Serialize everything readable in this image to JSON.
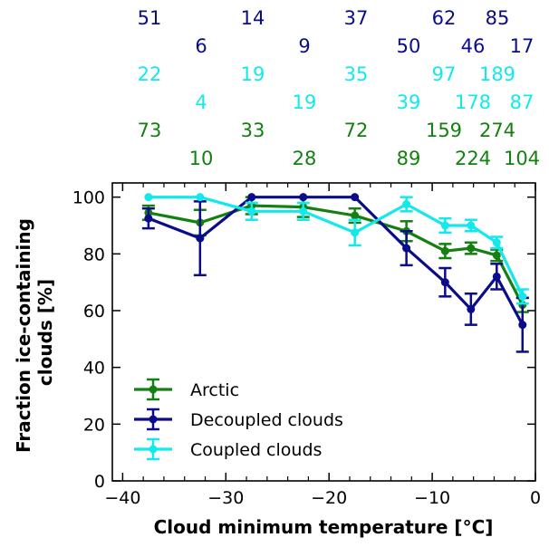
{
  "chart_data": {
    "type": "line",
    "xlabel": "Cloud minimum temperature [°C]",
    "ylabel_lines": [
      "Fraction ice-containing",
      "clouds [%]"
    ],
    "xlim": [
      -41,
      0
    ],
    "ylim": [
      0,
      105
    ],
    "xticks": [
      -40,
      -30,
      -20,
      -10,
      0
    ],
    "yticks": [
      0,
      20,
      40,
      60,
      80,
      100
    ],
    "minor_x_step": 2,
    "legend_position": "lower-left",
    "grid": false,
    "x": [
      -37.5,
      -32.5,
      -27.5,
      -22.5,
      -17.5,
      -12.5,
      -8.75,
      -6.25,
      -3.75,
      -1.25
    ],
    "series": [
      {
        "name": "Arctic",
        "color": "#138011",
        "values": [
          94.5,
          91,
          97,
          96.5,
          93.5,
          88,
          81,
          82,
          79.5,
          62
        ],
        "errors": [
          2.5,
          4.5,
          3,
          3.5,
          2.5,
          3.5,
          2.5,
          2,
          2,
          2.5
        ]
      },
      {
        "name": "Decoupled clouds",
        "color": "#0b0c8a",
        "values": [
          92.5,
          85.5,
          100,
          100,
          100,
          82,
          70,
          60.5,
          72,
          55
        ],
        "errors": [
          3.5,
          13,
          0,
          0,
          0,
          6,
          5,
          5.5,
          4.5,
          9.5
        ]
      },
      {
        "name": "Coupled clouds",
        "color": "#13e8ec",
        "values": [
          100,
          100,
          95,
          95,
          87.5,
          97.5,
          90,
          90,
          84,
          65
        ],
        "errors": [
          0,
          0,
          3,
          3,
          4.5,
          2.5,
          2.5,
          2,
          2,
          2.5
        ]
      }
    ],
    "count_rows": [
      {
        "color": "#0b0c8a",
        "labels": [
          "51",
          "14",
          "37",
          "62",
          "85"
        ]
      },
      {
        "color": "#0b0c8a",
        "labels": [
          "6",
          "9",
          "50",
          "46",
          "17"
        ]
      },
      {
        "color": "#13e8ec",
        "labels": [
          "22",
          "19",
          "35",
          "97",
          "189"
        ]
      },
      {
        "color": "#13e8ec",
        "labels": [
          "4",
          "19",
          "39",
          "178",
          "87"
        ]
      },
      {
        "color": "#138011",
        "labels": [
          "73",
          "33",
          "72",
          "159",
          "274"
        ]
      },
      {
        "color": "#138011",
        "labels": [
          "10",
          "28",
          "89",
          "224",
          "104"
        ]
      }
    ]
  }
}
